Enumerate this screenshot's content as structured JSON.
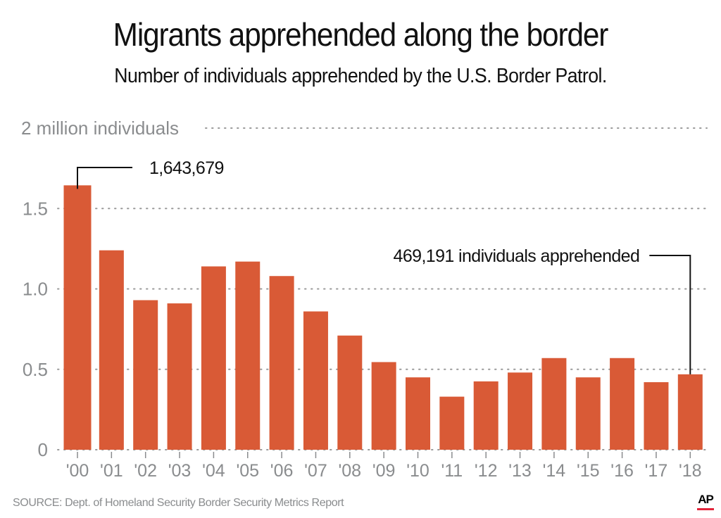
{
  "title": "Migrants apprehended along the border",
  "subtitle": "Number of individuals apprehended by the U.S. Border Patrol.",
  "source": "SOURCE: Dept. of Homeland Security Border Security Metrics Report",
  "logo": "AP",
  "colors": {
    "bar": "#d95a36",
    "grid": "#9a9a9a",
    "tick_text": "#8a8c8e",
    "annotation": "#111111",
    "logo_accent": "#e2243a"
  },
  "chart_data": {
    "type": "bar",
    "title": "Migrants apprehended along the border",
    "subtitle": "Number of individuals apprehended by the U.S. Border Patrol.",
    "xlabel": "",
    "ylabel": "million individuals",
    "ylim": [
      0,
      2
    ],
    "yticks": [
      0,
      0.5,
      1.0,
      1.5,
      2
    ],
    "ytick_labels": [
      "0",
      "0.5",
      "1.0",
      "1.5",
      "2 million individuals"
    ],
    "grid": true,
    "grid_style": "dotted",
    "categories": [
      "'00",
      "'01",
      "'02",
      "'03",
      "'04",
      "'05",
      "'06",
      "'07",
      "'08",
      "'09",
      "'10",
      "'11",
      "'12",
      "'13",
      "'14",
      "'15",
      "'16",
      "'17",
      "'18"
    ],
    "values": [
      1.644,
      1.24,
      0.93,
      0.91,
      1.14,
      1.17,
      1.08,
      0.86,
      0.71,
      0.545,
      0.45,
      0.33,
      0.425,
      0.48,
      0.57,
      0.45,
      0.57,
      0.42,
      0.469
    ],
    "annotations": [
      {
        "category": "'00",
        "text": "1,643,679",
        "side": "right"
      },
      {
        "category": "'18",
        "text": "469,191 individuals apprehended",
        "side": "left"
      }
    ]
  }
}
